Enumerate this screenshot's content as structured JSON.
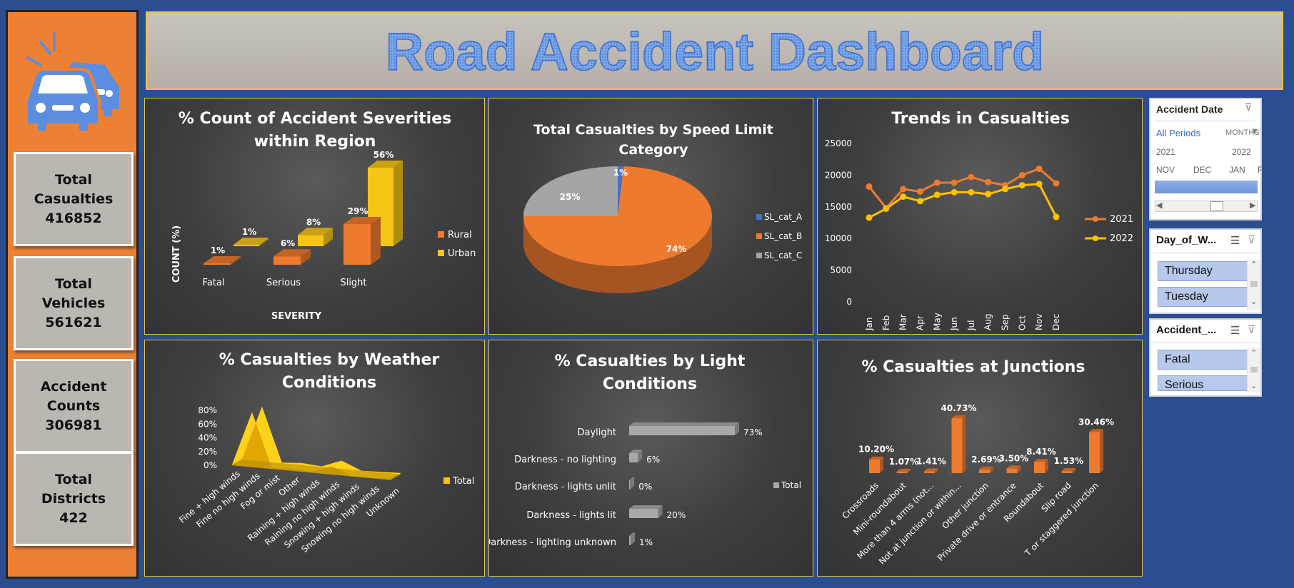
{
  "dashboard": {
    "title": "Road Accident Dashboard"
  },
  "colors": {
    "background": "#2a4e8f",
    "sidebar": "#ec8135",
    "kpi_box": "#bcb6b0",
    "rural": "#ee7a2e",
    "urban": "#f5c518",
    "sl_a": "#4472c4",
    "sl_b": "#ee7a2e",
    "sl_c": "#a5a5a5",
    "y2021": "#ee7a2e",
    "y2022": "#ffc000",
    "bar_grey": "#a8a8a8",
    "title_blue": "#6b9be0"
  },
  "kpis": [
    {
      "label1": "Total",
      "label2": "Casualties",
      "value": "416852"
    },
    {
      "label1": "Total",
      "label2": "Vehicles",
      "value": "561621"
    },
    {
      "label1": "Accident",
      "label2": "Counts",
      "value": "306981"
    },
    {
      "label1": "Total",
      "label2": "Districts",
      "value": "422"
    }
  ],
  "charts": {
    "severity": {
      "title_line1": "% Count of Accident Severities",
      "title_line2": "within Region"
    },
    "speed": {
      "title_line1": "Total Casualties by Speed Limit",
      "title_line2": "Category"
    },
    "trends": {
      "title": "Trends in Casualties"
    },
    "weather": {
      "title_line1": "% Casualties by Weather",
      "title_line2": "Conditions"
    },
    "light": {
      "title_line1": "% Casualties by Light",
      "title_line2": "Conditions"
    },
    "junctions": {
      "title": "% Casualties at Junctions"
    }
  },
  "chart_data": [
    {
      "id": "severity",
      "type": "bar",
      "title": "% Count of Accident Severities within Region",
      "xlabel": "SEVERITY",
      "ylabel": "COUNT (%)",
      "categories": [
        "Fatal",
        "Serious",
        "Slight"
      ],
      "series": [
        {
          "name": "Rural",
          "values": [
            1,
            6,
            29
          ],
          "labels": [
            "1%",
            "6%",
            "29%"
          ]
        },
        {
          "name": "Urban",
          "values": [
            1,
            8,
            56
          ],
          "labels": [
            "1%",
            "8%",
            "56%"
          ]
        }
      ],
      "legend": "right"
    },
    {
      "id": "speed",
      "type": "pie",
      "title": "Total Casualties by Speed Limit Category",
      "categories": [
        "SL_cat_A",
        "SL_cat_B",
        "SL_cat_C"
      ],
      "values": [
        1,
        74,
        25
      ],
      "labels": [
        "1%",
        "74%",
        "25%"
      ],
      "legend": "right"
    },
    {
      "id": "trends",
      "type": "line",
      "title": "Trends in Casualties",
      "categories": [
        "Jan",
        "Feb",
        "Mar",
        "Apr",
        "May",
        "Jun",
        "Jul",
        "Aug",
        "Sep",
        "Oct",
        "Nov",
        "Dec"
      ],
      "series": [
        {
          "name": "2021",
          "values": [
            18200,
            14800,
            17800,
            17400,
            18800,
            18800,
            19700,
            18900,
            18400,
            20000,
            21000,
            18700
          ]
        },
        {
          "name": "2022",
          "values": [
            13300,
            14700,
            16600,
            15900,
            16900,
            17300,
            17300,
            17000,
            17800,
            18400,
            18600,
            13400
          ]
        }
      ],
      "ylim": [
        0,
        25000
      ],
      "yticks": [
        "25000",
        "20000",
        "15000",
        "10000",
        "5000",
        "0"
      ],
      "legend": "right"
    },
    {
      "id": "weather",
      "type": "area",
      "title": "% Casualties by Weather Conditions",
      "categories": [
        "Fine + high winds",
        "Fine no high winds",
        "Fog or mist",
        "Other",
        "Raining + high winds",
        "Raining no high winds",
        "Snowing + high winds",
        "Snowing no high winds",
        "Unknown"
      ],
      "series": [
        {
          "name": "Total",
          "values": [
            1,
            80,
            1,
            3,
            1,
            12,
            0,
            1,
            2
          ]
        }
      ],
      "yticks": [
        "80%",
        "60%",
        "40%",
        "20%",
        "0%"
      ],
      "ylim": [
        0,
        80
      ],
      "legend": "right"
    },
    {
      "id": "light",
      "type": "bar",
      "title": "% Casualties by Light Conditions",
      "categories": [
        "Daylight",
        "Darkness - no lighting",
        "Darkness - lights unlit",
        "Darkness - lights lit",
        "Darkness - lighting unknown"
      ],
      "series": [
        {
          "name": "Total",
          "values": [
            73,
            6,
            0,
            20,
            1
          ],
          "labels": [
            "73%",
            "6%",
            "0%",
            "20%",
            "1%"
          ]
        }
      ],
      "legend": "right"
    },
    {
      "id": "junctions",
      "type": "bar",
      "title": "% Casualties at Junctions",
      "categories": [
        "Crossroads",
        "Mini-roundabout",
        "More than 4 arms (not...",
        "Not at junction or within...",
        "Other junction",
        "Private drive or entrance",
        "Roundabout",
        "Slip road",
        "T or staggered junction"
      ],
      "series": [
        {
          "name": "Total",
          "values": [
            10.2,
            1.07,
            1.41,
            40.73,
            2.69,
            3.5,
            8.41,
            1.53,
            30.46
          ],
          "labels": [
            "10.20%",
            "1.07%",
            "1.41%",
            "40.73%",
            "2.69%",
            "3.50%",
            "8.41%",
            "1.53%",
            "30.46%"
          ]
        }
      ]
    }
  ],
  "slicers": {
    "date": {
      "title": "Accident Date",
      "all_periods": "All Periods",
      "level": "MONTHS",
      "years": [
        "2021",
        "2022"
      ],
      "months": [
        "NOV",
        "DEC",
        "JAN",
        "F"
      ]
    },
    "day": {
      "title": "Day_of_W...",
      "items": [
        "Thursday",
        "Tuesday"
      ]
    },
    "severity": {
      "title": "Accident_...",
      "items": [
        "Fatal",
        "Serious"
      ]
    }
  }
}
